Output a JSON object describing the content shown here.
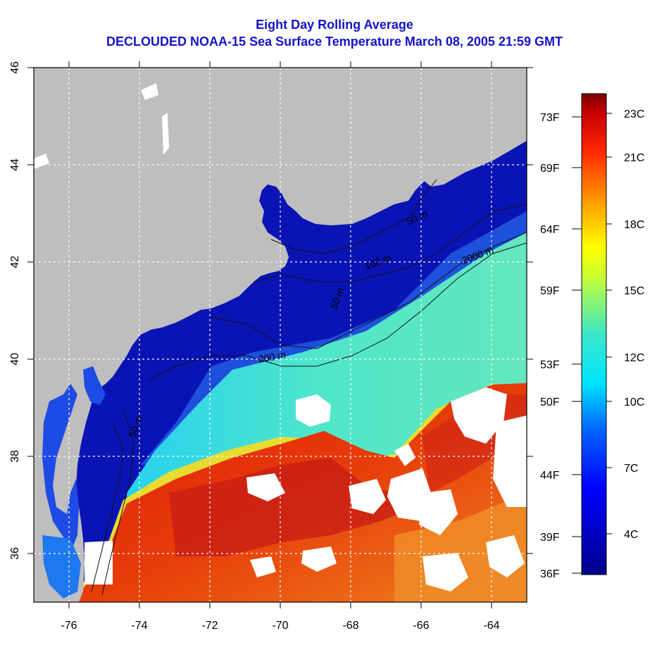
{
  "title_line1": "Eight Day Rolling Average",
  "title_line2": "DECLOUDED NOAA-15 Sea Surface Temperature March 08, 2005 21:59 GMT",
  "colors": {
    "title": "#1414c8",
    "land": "#bebebe",
    "cloud": "#ffffff",
    "sst_cold": "#0a14b4",
    "sst_warm": "#dc1e0a"
  },
  "axes": {
    "lon_ticks": [
      "-76",
      "-74",
      "-72",
      "-70",
      "-68",
      "-66",
      "-64"
    ],
    "lat_ticks": [
      "46",
      "44",
      "42",
      "40",
      "38",
      "36"
    ]
  },
  "contour_labels": [
    "50 m",
    "100 m",
    "2000 m",
    "200 m",
    "50 m",
    "50 m"
  ],
  "fahrenheit_ticks": [
    "73F",
    "69F",
    "64F",
    "59F",
    "53F",
    "50F",
    "44F",
    "39F",
    "36F"
  ],
  "celsius_ticks": [
    "23C",
    "21C",
    "18C",
    "15C",
    "12C",
    "10C",
    "7C",
    "4C"
  ]
}
